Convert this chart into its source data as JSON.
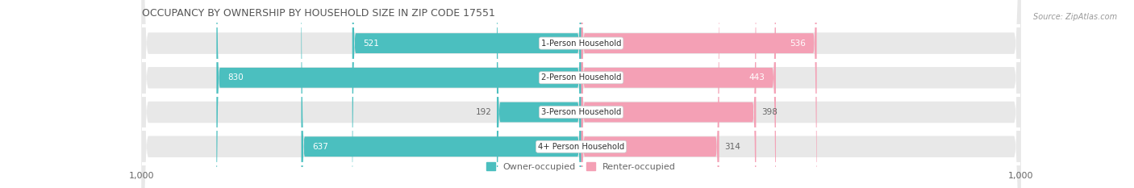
{
  "title": "OCCUPANCY BY OWNERSHIP BY HOUSEHOLD SIZE IN ZIP CODE 17551",
  "source": "Source: ZipAtlas.com",
  "categories": [
    "1-Person Household",
    "2-Person Household",
    "3-Person Household",
    "4+ Person Household"
  ],
  "owner_values": [
    521,
    830,
    192,
    637
  ],
  "renter_values": [
    536,
    443,
    398,
    314
  ],
  "owner_color": "#4BBFBF",
  "renter_color": "#F4A0B5",
  "bar_bg_color": "#E8E8E8",
  "axis_max": 1000,
  "label_color": "#666666",
  "title_color": "#555555",
  "legend_owner": "Owner-occupied",
  "legend_renter": "Renter-occupied",
  "figsize": [
    14.06,
    2.33
  ],
  "dpi": 100
}
